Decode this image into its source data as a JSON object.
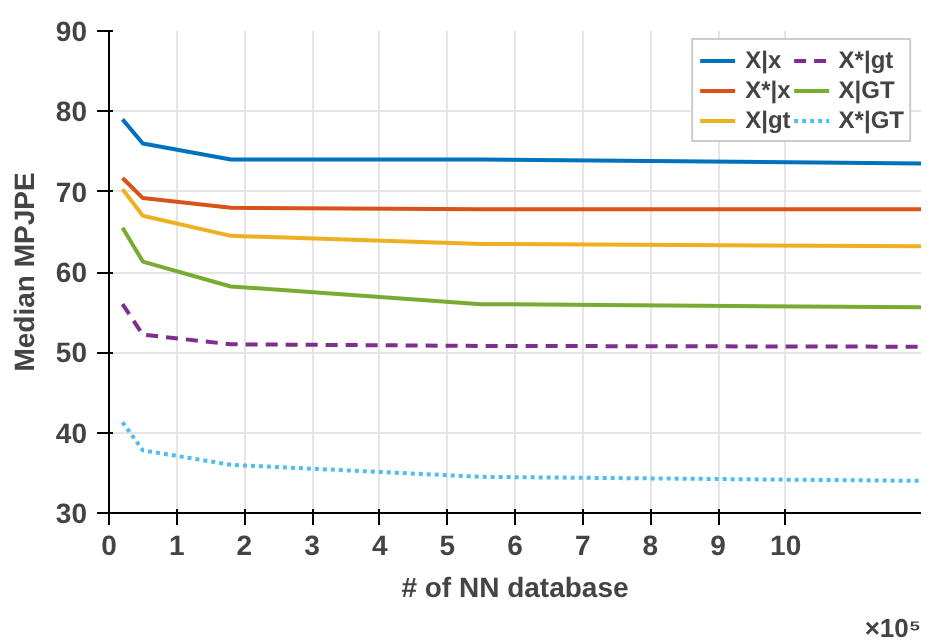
{
  "chart_data": {
    "type": "line",
    "xlabel": "# of NN database",
    "ylabel": "Median MPJPE",
    "annotations": [
      "×10⁵"
    ],
    "x": [
      0.2,
      0.5,
      1.8,
      5.5,
      12
    ],
    "xlim": [
      0,
      12
    ],
    "xticks": [
      0,
      1,
      2,
      3,
      4,
      5,
      6,
      7,
      8,
      9,
      10
    ],
    "ylim": [
      30,
      90
    ],
    "yticks": [
      30,
      40,
      50,
      60,
      70,
      80,
      90
    ],
    "grid": true,
    "legend": "top right",
    "series": [
      {
        "name": "X|x",
        "color": "#0072bd",
        "line_style": "solid",
        "values": [
          79,
          76,
          74,
          74,
          73.5
        ]
      },
      {
        "name": "X*|x",
        "color": "#d95319",
        "line_style": "solid",
        "values": [
          71.7,
          69.2,
          68,
          67.8,
          67.8
        ]
      },
      {
        "name": "X|gt",
        "color": "#edb120",
        "line_style": "solid",
        "values": [
          70.3,
          67,
          64.5,
          63.5,
          63.2
        ]
      },
      {
        "name": "X*|gt",
        "color": "#7e2f8e",
        "line_style": "dashed",
        "values": [
          56,
          52.2,
          51,
          50.8,
          50.7
        ]
      },
      {
        "name": "X|GT",
        "color": "#77ac30",
        "line_style": "solid",
        "values": [
          65.5,
          61.3,
          58.2,
          56,
          55.6
        ]
      },
      {
        "name": "X*|GT",
        "color": "#4dbeee",
        "line_style": "dotted",
        "values": [
          41.3,
          37.8,
          36,
          34.5,
          34
        ]
      }
    ]
  }
}
